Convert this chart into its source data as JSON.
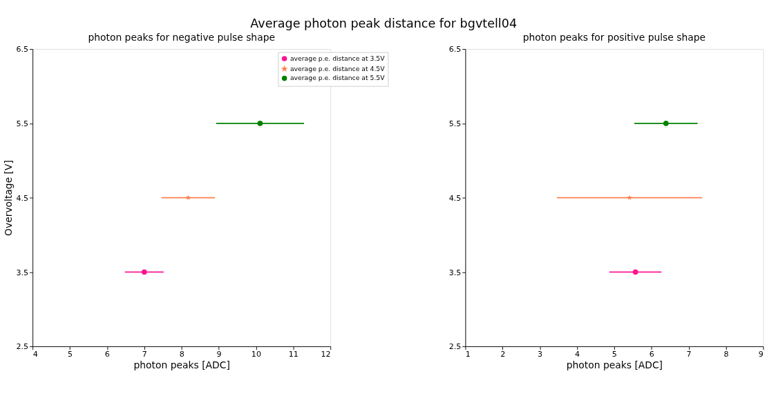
{
  "chart_data": [
    {
      "type": "scatter",
      "title": "photon peaks for negative pulse shape",
      "xlabel": "photon peaks [ADC]",
      "ylabel": "Overvoltage [V]",
      "annotations": [
        "Average photon peak distance for bgvtell04"
      ],
      "xlim": [
        4,
        12
      ],
      "xticks": [
        4,
        5,
        6,
        7,
        8,
        9,
        10,
        11,
        12
      ],
      "ylim": [
        2.5,
        6.5
      ],
      "yticks": [
        2.5,
        3.5,
        4.5,
        5.5,
        6.5
      ],
      "grid": false,
      "legend": "top right",
      "series": [
        {
          "name": "average p.e. distance at 3.5V",
          "color": "#ff1493",
          "marker": "circle",
          "x": [
            7.0
          ],
          "values": [
            3.5
          ],
          "xerrors": [
            0.52
          ]
        },
        {
          "name": "average p.e. distance at 4.5V",
          "color": "#ff7f50",
          "marker": "star",
          "x": [
            8.18
          ],
          "values": [
            4.5
          ],
          "xerrors": [
            0.72
          ]
        },
        {
          "name": "average p.e. distance at 5.5V",
          "color": "#008000",
          "marker": "circle",
          "x": [
            10.11
          ],
          "values": [
            5.5
          ],
          "xerrors": [
            1.18
          ]
        }
      ]
    },
    {
      "type": "scatter",
      "title": "photon peaks for positive pulse shape",
      "xlabel": "photon peaks [ADC]",
      "xlim": [
        1,
        9
      ],
      "xticks": [
        1,
        2,
        3,
        4,
        5,
        6,
        7,
        8,
        9
      ],
      "ylim": [
        2.5,
        6.5
      ],
      "yticks": [
        2.5,
        3.5,
        4.5,
        5.5,
        6.5
      ],
      "grid": false,
      "series": [
        {
          "color": "#ff1493",
          "marker": "circle",
          "x": [
            5.57
          ],
          "values": [
            3.5
          ],
          "xerrors": [
            0.7
          ]
        },
        {
          "color": "#ff7f50",
          "marker": "star",
          "x": [
            5.41
          ],
          "values": [
            4.5
          ],
          "xerrors": [
            1.95
          ]
        },
        {
          "color": "#008000",
          "marker": "circle",
          "x": [
            6.39
          ],
          "values": [
            5.5
          ],
          "xerrors": [
            0.85
          ]
        }
      ]
    }
  ]
}
